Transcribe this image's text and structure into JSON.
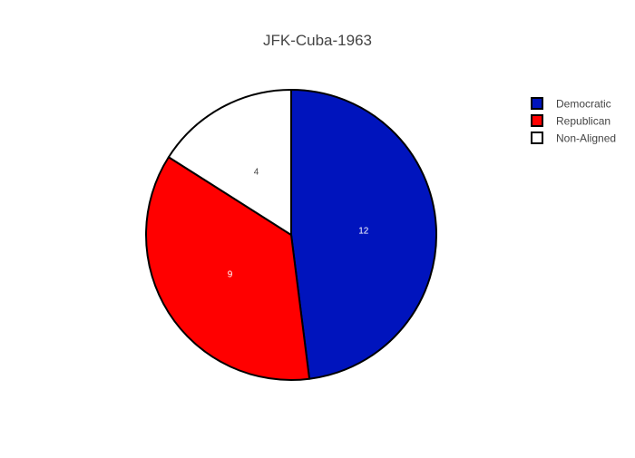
{
  "chart_data": {
    "type": "pie",
    "title": "JFK-Cuba-1963",
    "categories": [
      "Democratic",
      "Republican",
      "Non-Aligned"
    ],
    "values": [
      12,
      9,
      4
    ],
    "colors": [
      "#0014bd",
      "#ff0000",
      "#ffffff"
    ],
    "label_colors": [
      "#ffffff",
      "#ffffff",
      "#444444"
    ],
    "slice_border_color": "#000000",
    "start_angle_deg": 90,
    "direction": "clockwise",
    "legend_position": "top-right"
  }
}
